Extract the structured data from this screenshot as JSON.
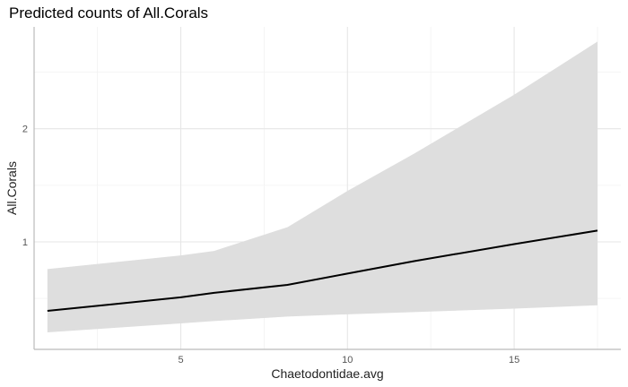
{
  "chart_data": {
    "type": "line",
    "title": "Predicted counts of All.Corals",
    "xlabel": "Chaetodontidae.avg",
    "ylabel": "All.Corals",
    "xlim": [
      0.6,
      18.2
    ],
    "ylim": [
      0.05,
      2.9
    ],
    "x_ticks": [
      5,
      10,
      15
    ],
    "x_tick_labels": [
      "5",
      "10",
      "15"
    ],
    "y_ticks": [
      1,
      2
    ],
    "y_tick_labels": [
      "1",
      "2"
    ],
    "grid": true,
    "legend": "none",
    "series": [
      {
        "x": [
          1,
          3,
          5,
          6,
          8.2,
          10,
          12,
          15,
          17.5
        ],
        "values": [
          0.39,
          0.45,
          0.51,
          0.55,
          0.62,
          0.72,
          0.83,
          0.98,
          1.1
        ],
        "lower": [
          0.2,
          0.24,
          0.28,
          0.3,
          0.34,
          0.36,
          0.38,
          0.41,
          0.44
        ],
        "upper": [
          0.76,
          0.82,
          0.88,
          0.92,
          1.13,
          1.45,
          1.78,
          2.3,
          2.77
        ]
      }
    ],
    "colors": {
      "line": "#000000",
      "ribbon": "#dedede",
      "grid_major": "#e6e6e6",
      "grid_minor": "#f2f2f2",
      "axis": "#bbbbbb"
    }
  }
}
